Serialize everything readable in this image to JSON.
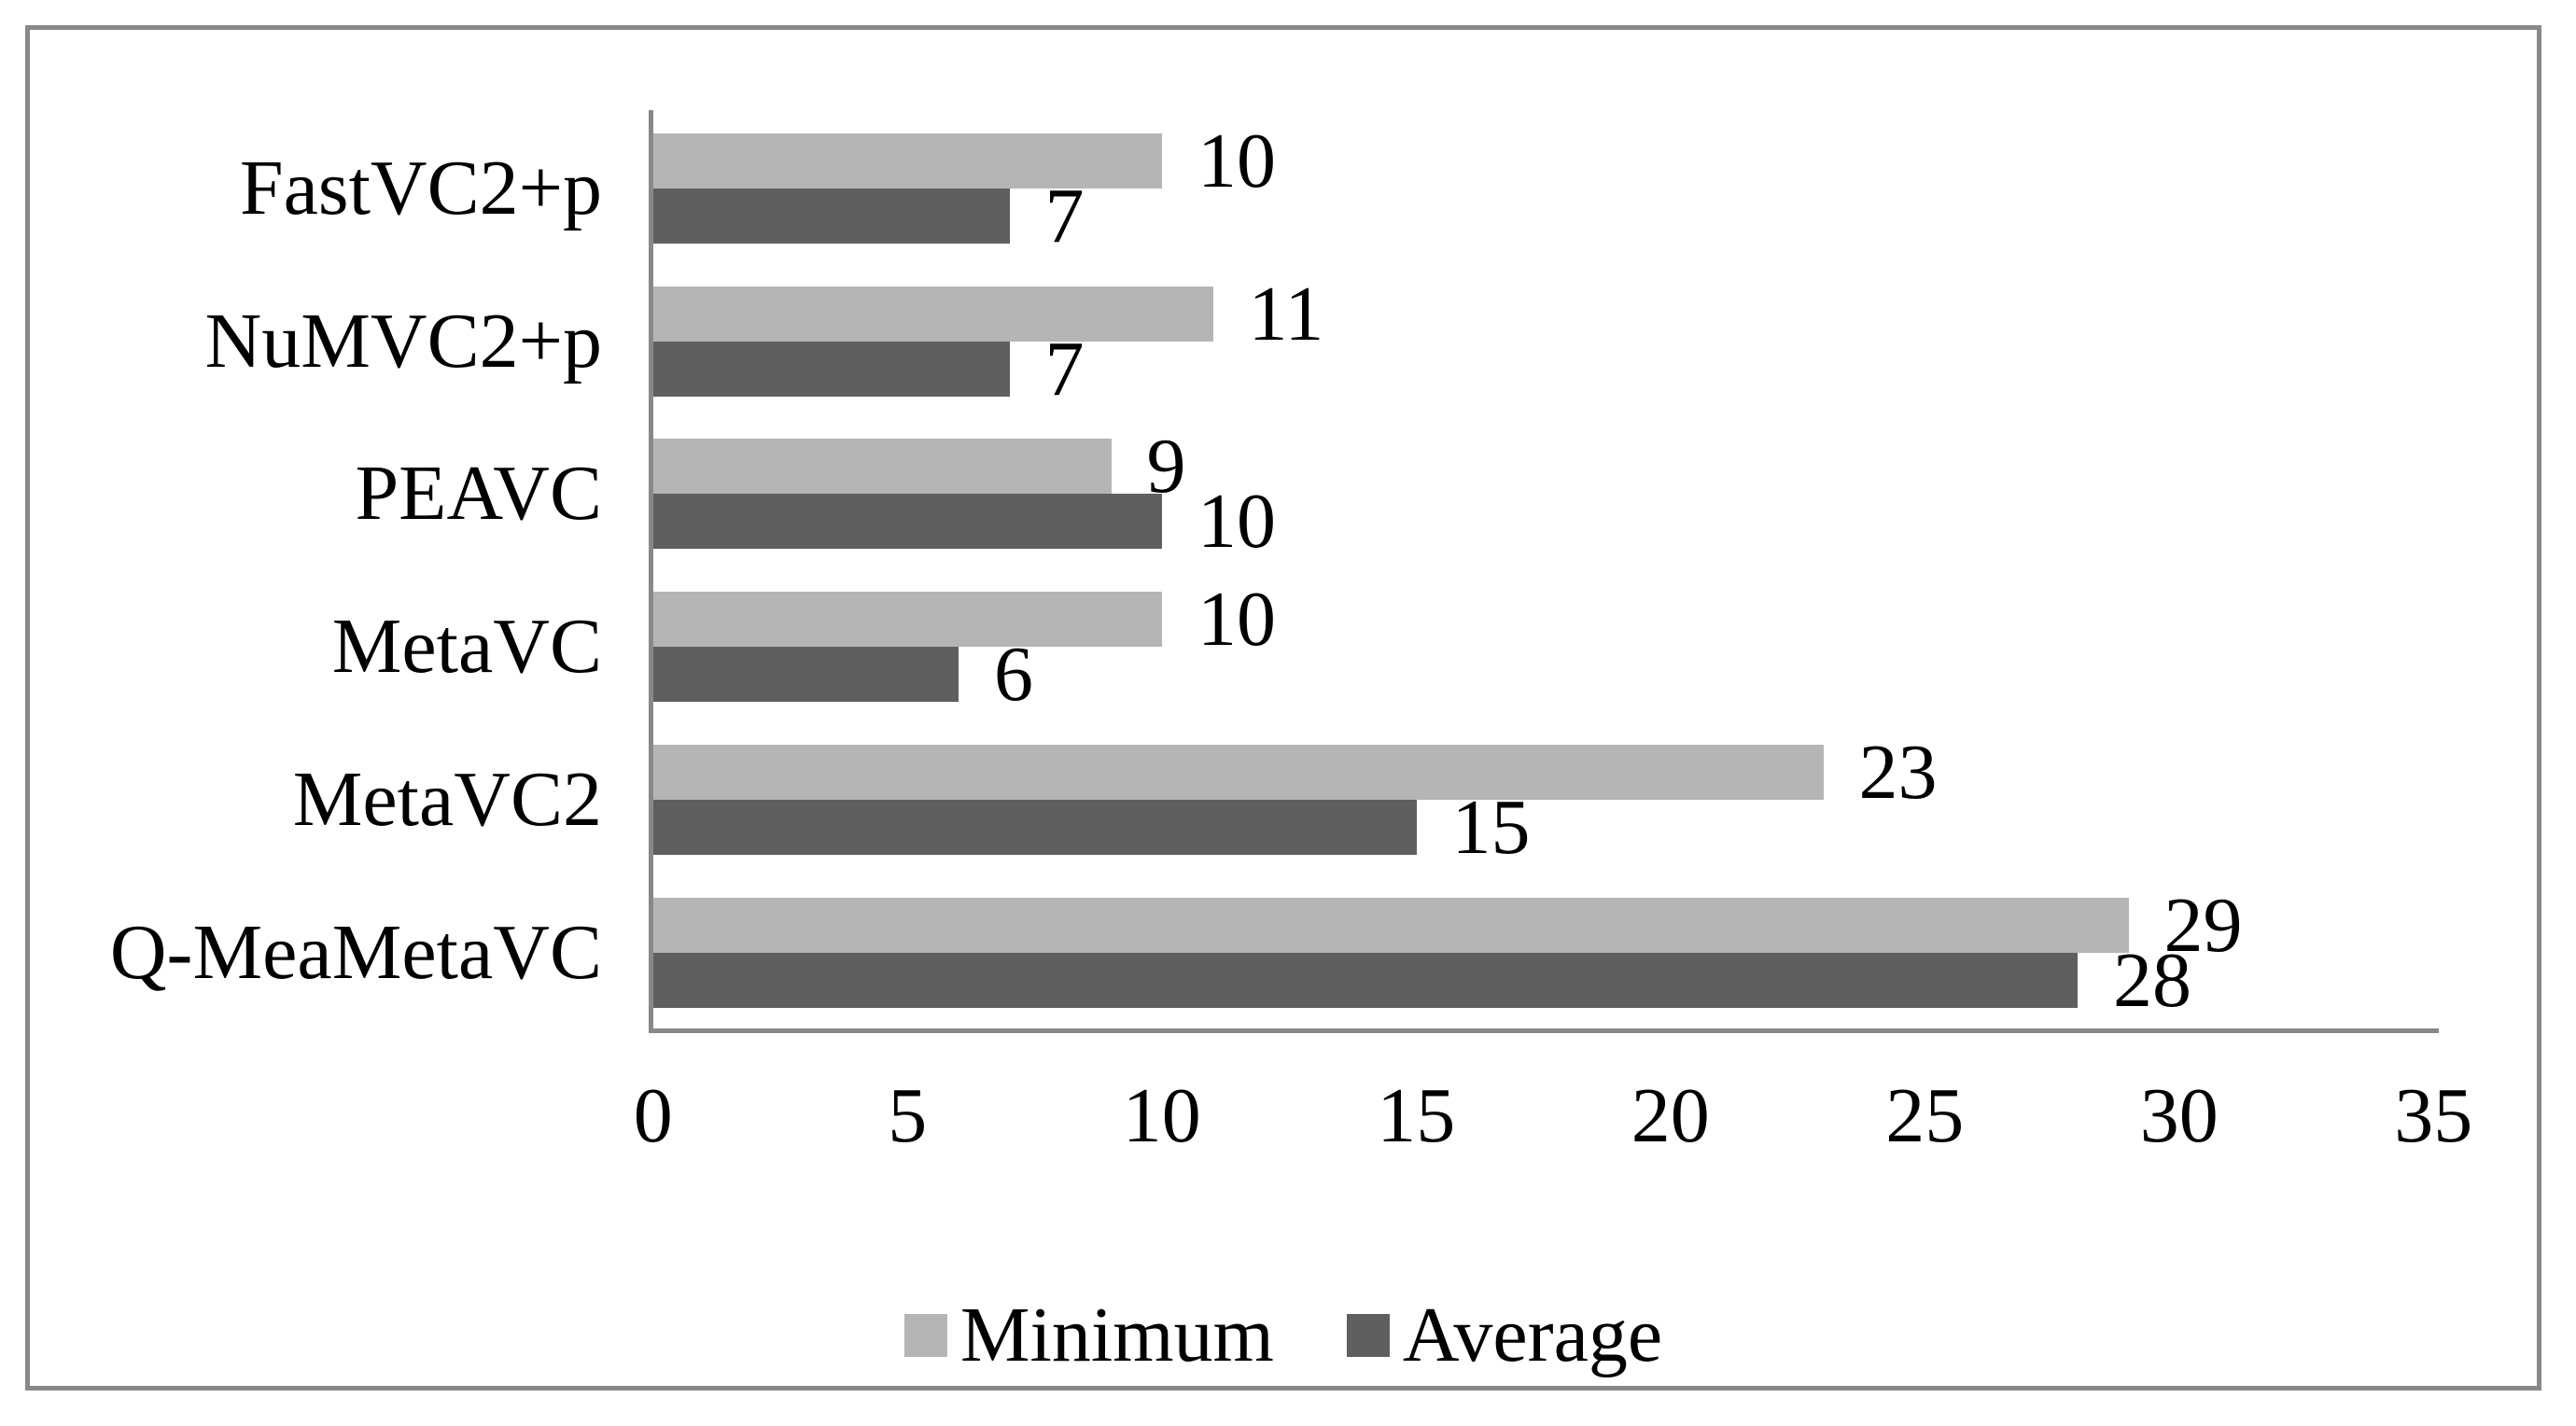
{
  "chart_data": {
    "type": "bar",
    "orientation": "horizontal",
    "title": "",
    "xlabel": "",
    "ylabel": "",
    "categories": [
      "FastVC2+p",
      "NuMVC2+p",
      "PEAVC",
      "MetaVC",
      "MetaVC2",
      "Q-MeaMetaVC"
    ],
    "series": [
      {
        "name": "Minimum",
        "color": "#b5b5b5",
        "values": [
          10,
          11,
          9,
          10,
          23,
          29
        ]
      },
      {
        "name": "Average",
        "color": "#5f5f5f",
        "values": [
          7,
          7,
          10,
          6,
          15,
          28
        ]
      }
    ],
    "xlim": [
      0,
      35
    ],
    "x_ticks": [
      "0",
      "5",
      "10",
      "15",
      "20",
      "25",
      "30",
      "35"
    ],
    "x_tick_values": [
      0,
      5,
      10,
      15,
      20,
      25,
      30,
      35
    ],
    "data_labels": true,
    "grid": false,
    "legend_position": "bottom",
    "colors": {
      "axis_line": "#898989",
      "frame_border": "#898989",
      "label_text": "#000000",
      "background": "#ffffff"
    }
  }
}
